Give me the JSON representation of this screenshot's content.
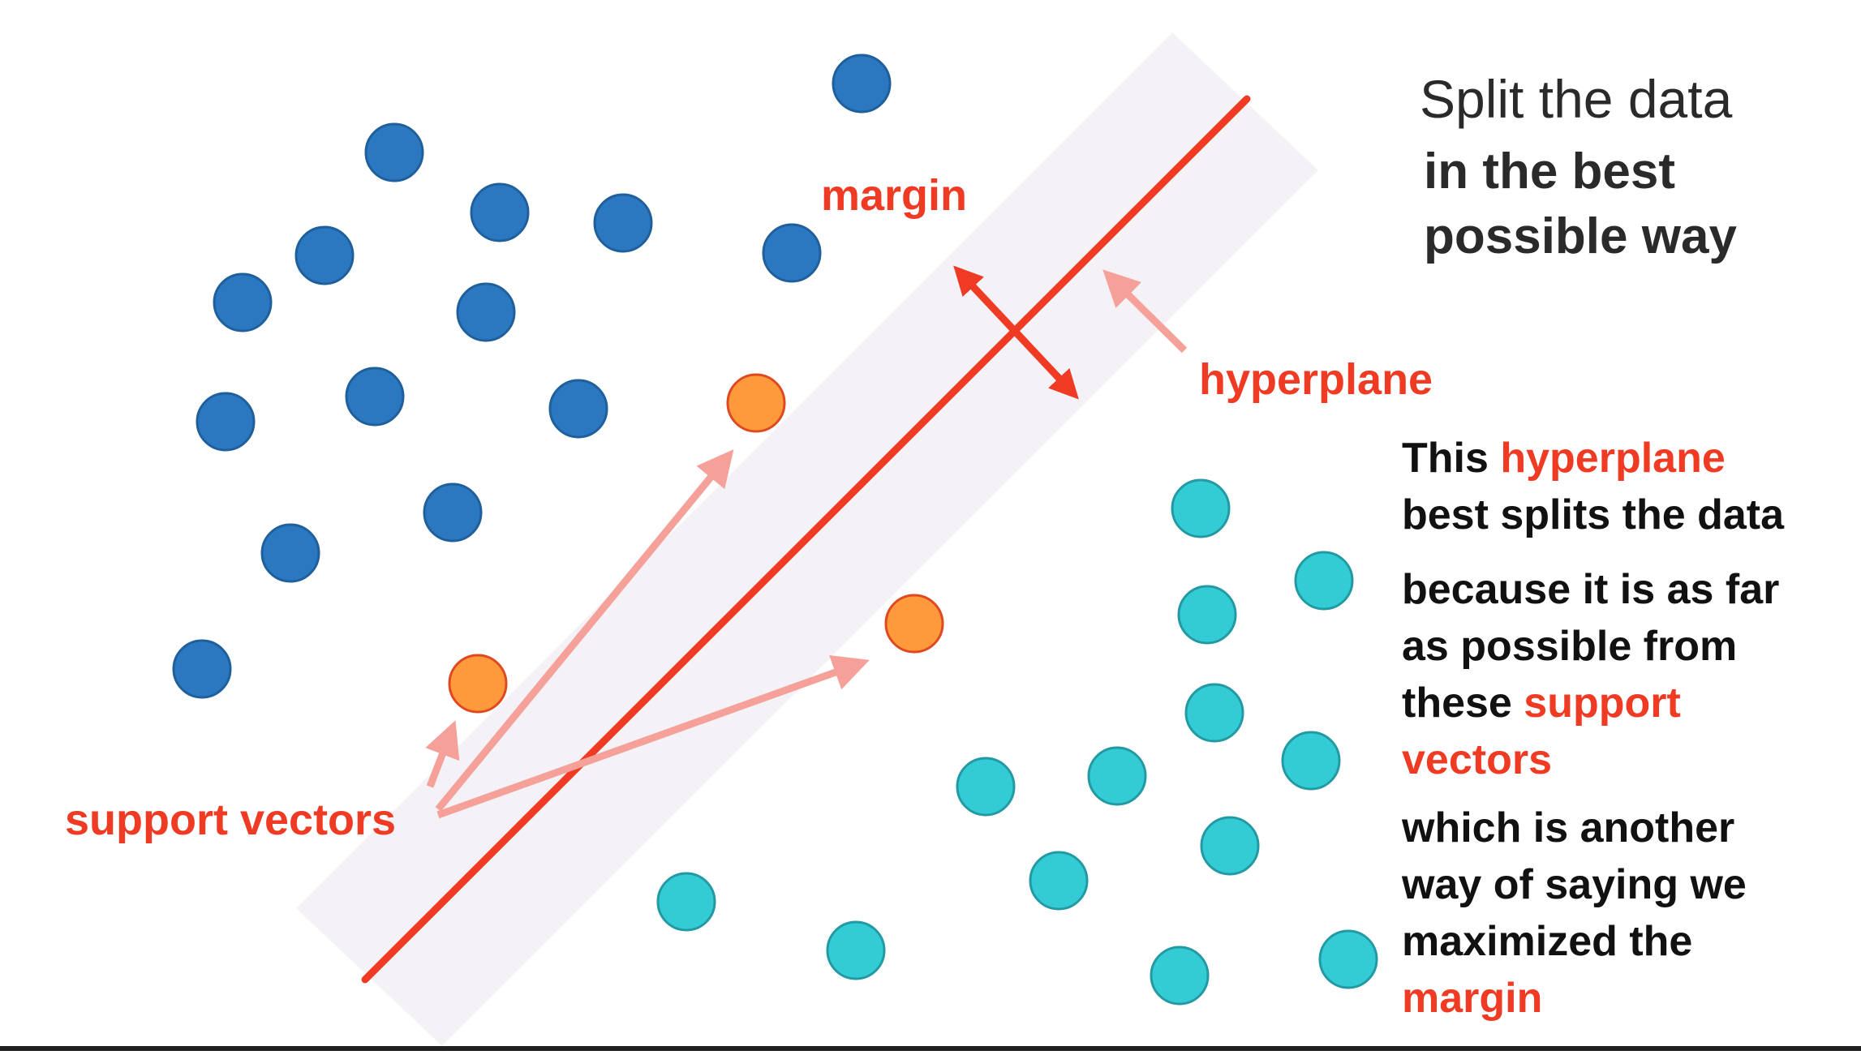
{
  "heading": {
    "line1": "Split the data",
    "line2": "in the best",
    "line3": "possible way"
  },
  "labels": {
    "margin": "margin",
    "hyperplane": "hyperplane",
    "support_vectors": "support vectors"
  },
  "explanation": {
    "p1_a": "This ",
    "p1_b": "hyperplane",
    "p1_c": "best splits the data",
    "p2_a": "because it is as far",
    "p2_b": "as possible from",
    "p2_c": "these ",
    "p2_d": "support",
    "p2_e": "vectors",
    "p3_a": "which is another",
    "p3_b": "way of saying we",
    "p3_c": "maximized the",
    "p3_d": "margin"
  },
  "colors": {
    "class_a": "#2b78c0",
    "class_b": "#33ccd4",
    "support_vector": "#ff9a3c",
    "hyperplane": "#ef3b24",
    "arrow_pale": "#f5a19a",
    "margin_band": "#f4f2f6"
  }
}
